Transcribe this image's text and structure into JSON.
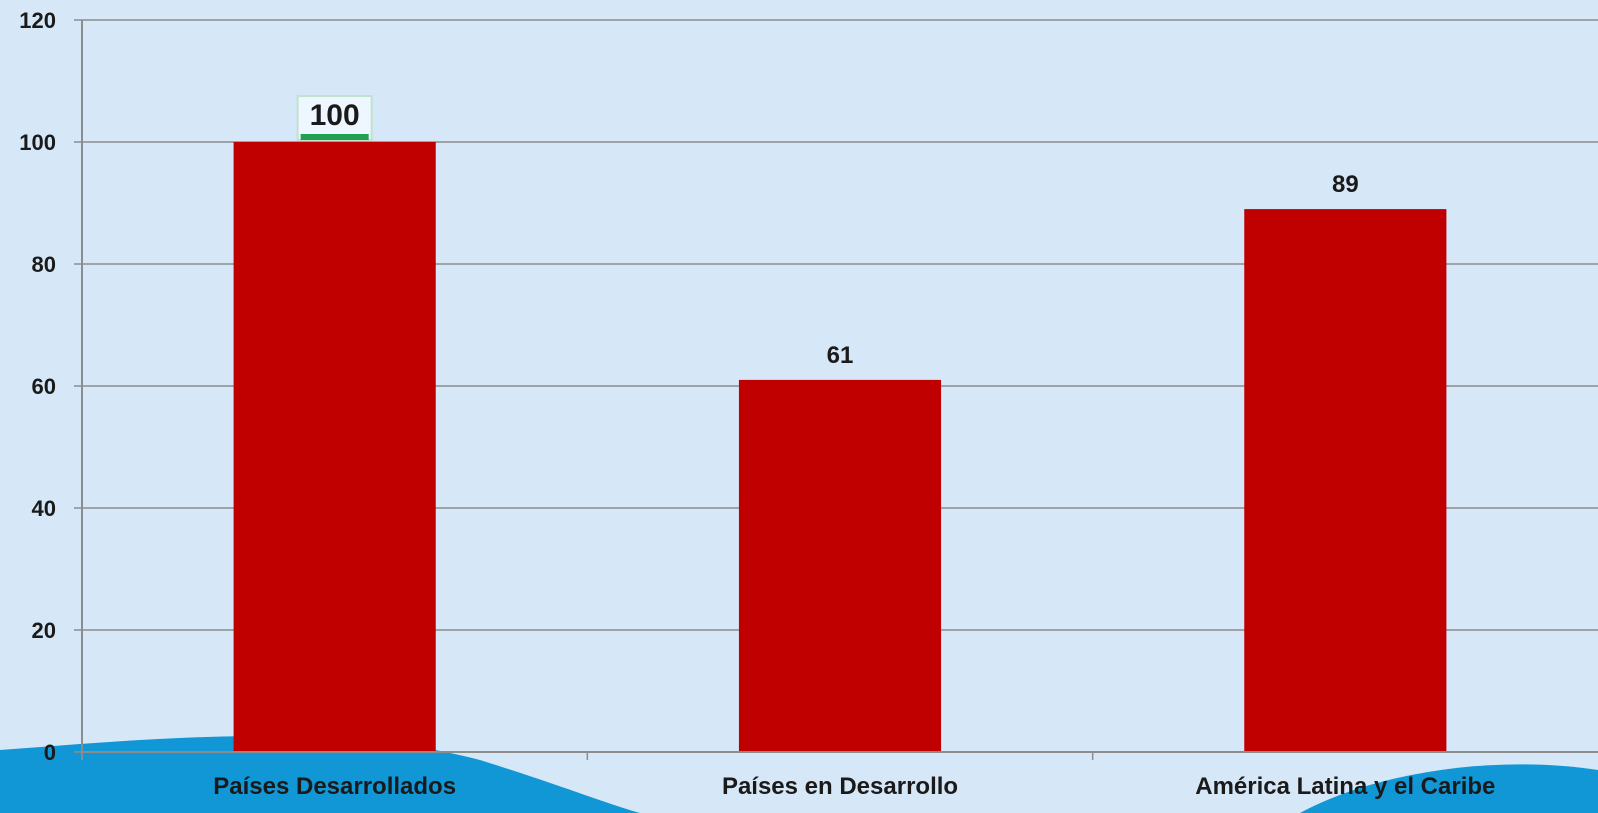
{
  "chart_data": {
    "type": "bar",
    "categories": [
      "Países Desarrollados",
      "Países en Desarrollo",
      "América Latina y el Caribe"
    ],
    "values": [
      100,
      61,
      89
    ],
    "ylim": [
      0,
      120
    ],
    "yticks": [
      0,
      20,
      40,
      60,
      80,
      100,
      120
    ],
    "grid": true,
    "legend": "none",
    "selected_label_index": 0,
    "colors": {
      "bar": "#c00000",
      "background": "#d6e8f8",
      "grid": "#8c8c8c",
      "wave": "#1196d6",
      "selection": "#20a050"
    }
  }
}
